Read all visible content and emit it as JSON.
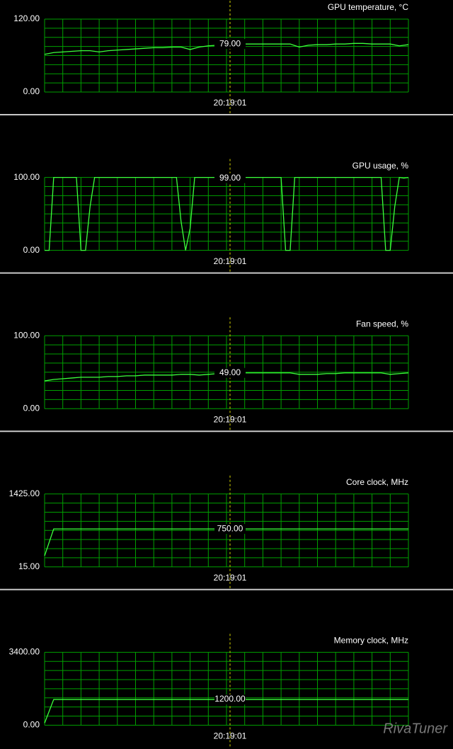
{
  "chart_data": [
    {
      "type": "line",
      "title": "GPU temperature, °C",
      "ylim": [
        0,
        120
      ],
      "yticks": [
        {
          "value": 0,
          "label": "0.00"
        },
        {
          "value": 120,
          "label": "120.00"
        }
      ],
      "series": [
        {
          "color": "#3cff3c",
          "values": [
            62,
            65,
            66,
            67,
            68,
            68,
            66,
            68,
            69,
            70,
            71,
            72,
            73,
            73,
            74,
            74,
            70,
            74,
            76,
            77,
            78,
            79,
            79,
            79,
            79,
            79,
            79,
            79,
            74,
            77,
            78,
            78,
            79,
            79,
            80,
            80,
            79,
            79,
            79,
            76,
            78
          ]
        }
      ],
      "cursor_label": "20:19:01",
      "cursor_value": {
        "value": 79,
        "label": "79.00"
      }
    },
    {
      "type": "line",
      "title": "GPU usage, %",
      "ylim": [
        0,
        100
      ],
      "yticks": [
        {
          "value": 0,
          "label": "0.00"
        },
        {
          "value": 100,
          "label": "100.00"
        }
      ],
      "series": [
        {
          "color": "#3cff3c",
          "values": [
            0,
            0,
            100,
            100,
            100,
            100,
            100,
            100,
            0,
            0,
            60,
            100,
            100,
            100,
            100,
            100,
            100,
            100,
            100,
            100,
            100,
            100,
            100,
            100,
            100,
            100,
            100,
            100,
            100,
            100,
            40,
            0,
            30,
            100,
            100,
            100,
            100,
            100,
            100,
            100,
            100,
            100,
            100,
            100,
            100,
            100,
            100,
            100,
            100,
            100,
            100,
            100,
            100,
            0,
            0,
            100,
            100,
            100,
            100,
            100,
            100,
            100,
            100,
            100,
            100,
            100,
            100,
            100,
            100,
            100,
            100,
            100,
            100,
            100,
            100,
            0,
            0,
            60,
            100,
            99,
            100
          ]
        }
      ],
      "cursor_label": "20:19:01",
      "cursor_value": {
        "value": 99,
        "label": "99.00"
      }
    },
    {
      "type": "line",
      "title": "Fan speed, %",
      "ylim": [
        0,
        100
      ],
      "yticks": [
        {
          "value": 0,
          "label": "0.00"
        },
        {
          "value": 100,
          "label": "100.00"
        }
      ],
      "series": [
        {
          "color": "#3cff3c",
          "values": [
            38,
            40,
            41,
            42,
            43,
            43,
            43,
            44,
            44,
            45,
            45,
            46,
            46,
            46,
            46,
            47,
            47,
            46,
            47,
            48,
            48,
            49,
            49,
            49,
            49,
            49,
            49,
            49,
            47,
            47,
            47,
            48,
            48,
            49,
            49,
            49,
            49,
            49,
            47,
            48,
            49
          ]
        }
      ],
      "cursor_label": "20:19:01",
      "cursor_value": {
        "value": 49,
        "label": "49.00"
      }
    },
    {
      "type": "line",
      "title": "Core clock, MHz",
      "ylim": [
        15,
        1425
      ],
      "yticks": [
        {
          "value": 15,
          "label": "15.00"
        },
        {
          "value": 1425,
          "label": "1425.00"
        }
      ],
      "series": [
        {
          "color": "#3cff3c",
          "values": [
            230,
            750,
            750,
            750,
            750,
            750,
            750,
            750,
            750,
            750,
            750,
            750,
            750,
            750,
            750,
            750,
            750,
            750,
            750,
            750,
            750,
            750,
            750,
            750,
            750,
            750,
            750,
            750,
            750,
            750,
            750,
            750,
            750,
            750,
            750,
            750,
            750,
            750,
            750,
            750,
            750
          ]
        }
      ],
      "cursor_label": "20:19:01",
      "cursor_value": {
        "value": 750,
        "label": "750.00"
      }
    },
    {
      "type": "line",
      "title": "Memory clock, MHz",
      "ylim": [
        0,
        3400
      ],
      "yticks": [
        {
          "value": 0,
          "label": "0.00"
        },
        {
          "value": 3400,
          "label": "3400.00"
        }
      ],
      "series": [
        {
          "color": "#3cff3c",
          "values": [
            100,
            1200,
            1200,
            1200,
            1200,
            1200,
            1200,
            1200,
            1200,
            1200,
            1200,
            1200,
            1200,
            1200,
            1200,
            1200,
            1200,
            1200,
            1200,
            1200,
            1200,
            1200,
            1200,
            1200,
            1200,
            1200,
            1200,
            1200,
            1200,
            1200,
            1200,
            1200,
            1200,
            1200,
            1200,
            1200,
            1200,
            1200,
            1200,
            1200,
            1200
          ]
        }
      ],
      "cursor_label": "20:19:01",
      "cursor_value": {
        "value": 1200,
        "label": "1200.00"
      }
    }
  ],
  "watermark": "RivaTuner"
}
